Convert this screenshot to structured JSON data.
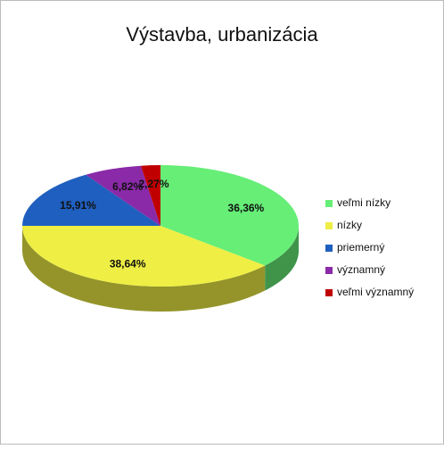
{
  "chart_data": {
    "type": "pie",
    "title": "Výstavba, urbanizácia",
    "categories": [
      "veľmi nízky",
      "nízky",
      "priemerný",
      "významný",
      "veľmi významný"
    ],
    "values": [
      36.36,
      38.64,
      15.91,
      6.82,
      2.27
    ],
    "value_labels": [
      "36,36%",
      "38,64%",
      "15,91%",
      "6,82%",
      "2,27%"
    ],
    "colors": [
      "#66ee77",
      "#eeee44",
      "#1f5fbf",
      "#8a2aa8",
      "#c00000"
    ],
    "legend": "right"
  }
}
